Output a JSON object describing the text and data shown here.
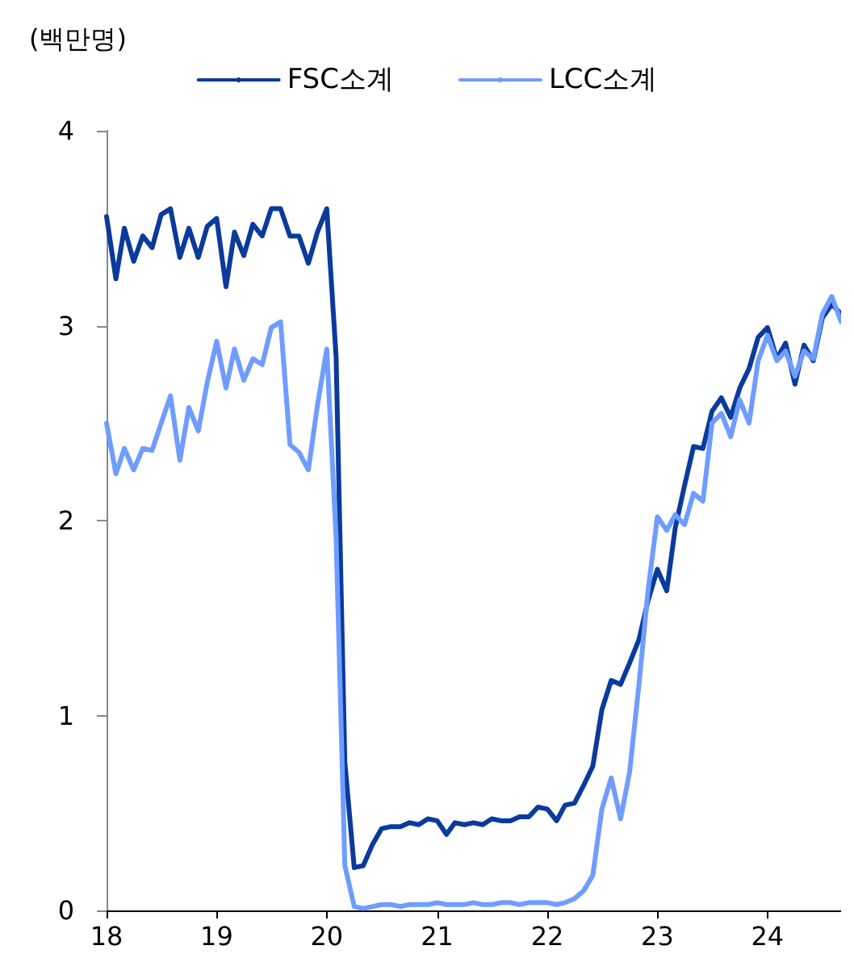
{
  "chart_data": {
    "type": "line",
    "ylabel": "(백만명)",
    "x": [
      "2018-01",
      "2018-02",
      "2018-03",
      "2018-04",
      "2018-05",
      "2018-06",
      "2018-07",
      "2018-08",
      "2018-09",
      "2018-10",
      "2018-11",
      "2018-12",
      "2019-01",
      "2019-02",
      "2019-03",
      "2019-04",
      "2019-05",
      "2019-06",
      "2019-07",
      "2019-08",
      "2019-09",
      "2019-10",
      "2019-11",
      "2019-12",
      "2020-01",
      "2020-02",
      "2020-03",
      "2020-04",
      "2020-05",
      "2020-06",
      "2020-07",
      "2020-08",
      "2020-09",
      "2020-10",
      "2020-11",
      "2020-12",
      "2021-01",
      "2021-02",
      "2021-03",
      "2021-04",
      "2021-05",
      "2021-06",
      "2021-07",
      "2021-08",
      "2021-09",
      "2021-10",
      "2021-11",
      "2021-12",
      "2022-01",
      "2022-02",
      "2022-03",
      "2022-04",
      "2022-05",
      "2022-06",
      "2022-07",
      "2022-08",
      "2022-09",
      "2022-10",
      "2022-11",
      "2022-12",
      "2023-01",
      "2023-02",
      "2023-03",
      "2023-04",
      "2023-05",
      "2023-06",
      "2023-07",
      "2023-08",
      "2023-09",
      "2023-10",
      "2023-11",
      "2023-12",
      "2024-01",
      "2024-02",
      "2024-03",
      "2024-04",
      "2024-05",
      "2024-06",
      "2024-07",
      "2024-08",
      "2024-09"
    ],
    "series": [
      {
        "name": "FSC소계",
        "color": "#0a3a9c",
        "values": [
          3.56,
          3.24,
          3.5,
          3.33,
          3.46,
          3.4,
          3.57,
          3.6,
          3.35,
          3.5,
          3.35,
          3.51,
          3.55,
          3.2,
          3.48,
          3.36,
          3.52,
          3.46,
          3.6,
          3.6,
          3.46,
          3.46,
          3.32,
          3.48,
          3.6,
          2.84,
          0.76,
          0.22,
          0.23,
          0.34,
          0.42,
          0.43,
          0.43,
          0.45,
          0.44,
          0.47,
          0.46,
          0.39,
          0.45,
          0.44,
          0.45,
          0.44,
          0.47,
          0.46,
          0.46,
          0.48,
          0.48,
          0.53,
          0.52,
          0.46,
          0.54,
          0.55,
          0.64,
          0.74,
          1.03,
          1.18,
          1.16,
          1.27,
          1.39,
          1.59,
          1.75,
          1.64,
          1.96,
          2.18,
          2.38,
          2.37,
          2.56,
          2.63,
          2.53,
          2.68,
          2.78,
          2.94,
          2.99,
          2.83,
          2.91,
          2.7,
          2.9,
          2.82,
          3.04,
          3.11,
          3.06
        ]
      },
      {
        "name": "LCC소계",
        "color": "#6f9cff",
        "values": [
          2.5,
          2.24,
          2.37,
          2.26,
          2.37,
          2.36,
          2.5,
          2.64,
          2.31,
          2.58,
          2.46,
          2.71,
          2.92,
          2.68,
          2.88,
          2.72,
          2.83,
          2.8,
          2.99,
          3.02,
          2.39,
          2.35,
          2.26,
          2.59,
          2.88,
          1.91,
          0.23,
          0.02,
          0.01,
          0.02,
          0.03,
          0.03,
          0.02,
          0.03,
          0.03,
          0.03,
          0.04,
          0.03,
          0.03,
          0.03,
          0.04,
          0.03,
          0.03,
          0.04,
          0.04,
          0.03,
          0.04,
          0.04,
          0.04,
          0.03,
          0.04,
          0.06,
          0.1,
          0.18,
          0.52,
          0.68,
          0.47,
          0.71,
          1.16,
          1.64,
          2.02,
          1.95,
          2.03,
          1.98,
          2.14,
          2.1,
          2.5,
          2.55,
          2.43,
          2.62,
          2.5,
          2.82,
          2.95,
          2.82,
          2.87,
          2.74,
          2.87,
          2.83,
          3.06,
          3.15,
          3.02
        ]
      }
    ],
    "xlim": [
      "2018-01",
      "2024-09"
    ],
    "xticks": [
      {
        "value": "2018",
        "label": "18"
      },
      {
        "value": "2019",
        "label": "19"
      },
      {
        "value": "2020",
        "label": "20"
      },
      {
        "value": "2021",
        "label": "21"
      },
      {
        "value": "2022",
        "label": "22"
      },
      {
        "value": "2023",
        "label": "23"
      },
      {
        "value": "2024",
        "label": "24"
      }
    ],
    "ylim": [
      0,
      4
    ],
    "yticks": [
      0,
      1,
      2,
      3,
      4
    ],
    "grid": false,
    "legend": "top",
    "marker": "none",
    "line_style": "solid"
  }
}
